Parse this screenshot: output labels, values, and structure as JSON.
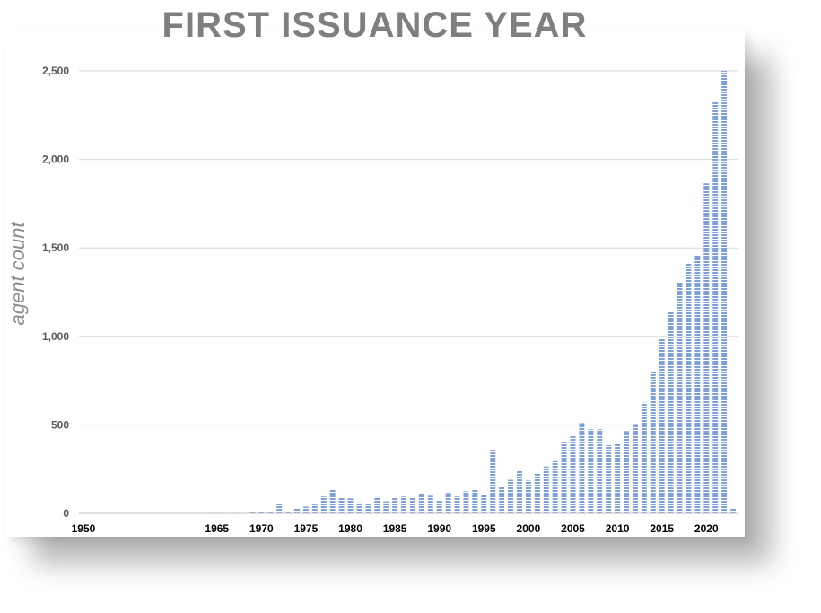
{
  "chart_data": {
    "type": "bar",
    "title": "FIRST ISSUANCE YEAR",
    "xlabel": "",
    "ylabel": "agent count",
    "ylim": [
      0,
      2500
    ],
    "y_ticks": [
      "0",
      "500",
      "1,000",
      "1,500",
      "2,000",
      "2,500"
    ],
    "y_tick_values": [
      0,
      500,
      1000,
      1500,
      2000,
      2500
    ],
    "x_ticks": [
      "1950",
      "1965",
      "1970",
      "1975",
      "1980",
      "1985",
      "1990",
      "1995",
      "2000",
      "2005",
      "2010",
      "2015",
      "2020"
    ],
    "grid": true,
    "bar_color": "#7da0d8",
    "categories": [
      1950,
      1965,
      1966,
      1967,
      1968,
      1969,
      1970,
      1971,
      1972,
      1973,
      1974,
      1975,
      1976,
      1977,
      1978,
      1979,
      1980,
      1981,
      1982,
      1983,
      1984,
      1985,
      1986,
      1987,
      1988,
      1989,
      1990,
      1991,
      1992,
      1993,
      1994,
      1995,
      1996,
      1997,
      1998,
      1999,
      2000,
      2001,
      2002,
      2003,
      2004,
      2005,
      2006,
      2007,
      2008,
      2009,
      2010,
      2011,
      2012,
      2013,
      2014,
      2015,
      2016,
      2017,
      2018,
      2019,
      2020,
      2021,
      2022,
      2023
    ],
    "values": [
      2,
      3,
      2,
      3,
      2,
      8,
      5,
      12,
      55,
      15,
      28,
      38,
      50,
      95,
      135,
      90,
      85,
      62,
      60,
      92,
      68,
      90,
      95,
      90,
      112,
      100,
      75,
      115,
      95,
      125,
      135,
      105,
      365,
      155,
      190,
      240,
      185,
      225,
      265,
      295,
      400,
      440,
      510,
      475,
      475,
      385,
      395,
      465,
      505,
      625,
      800,
      985,
      1140,
      1305,
      1415,
      1460,
      1865,
      2330,
      2500,
      25
    ]
  }
}
